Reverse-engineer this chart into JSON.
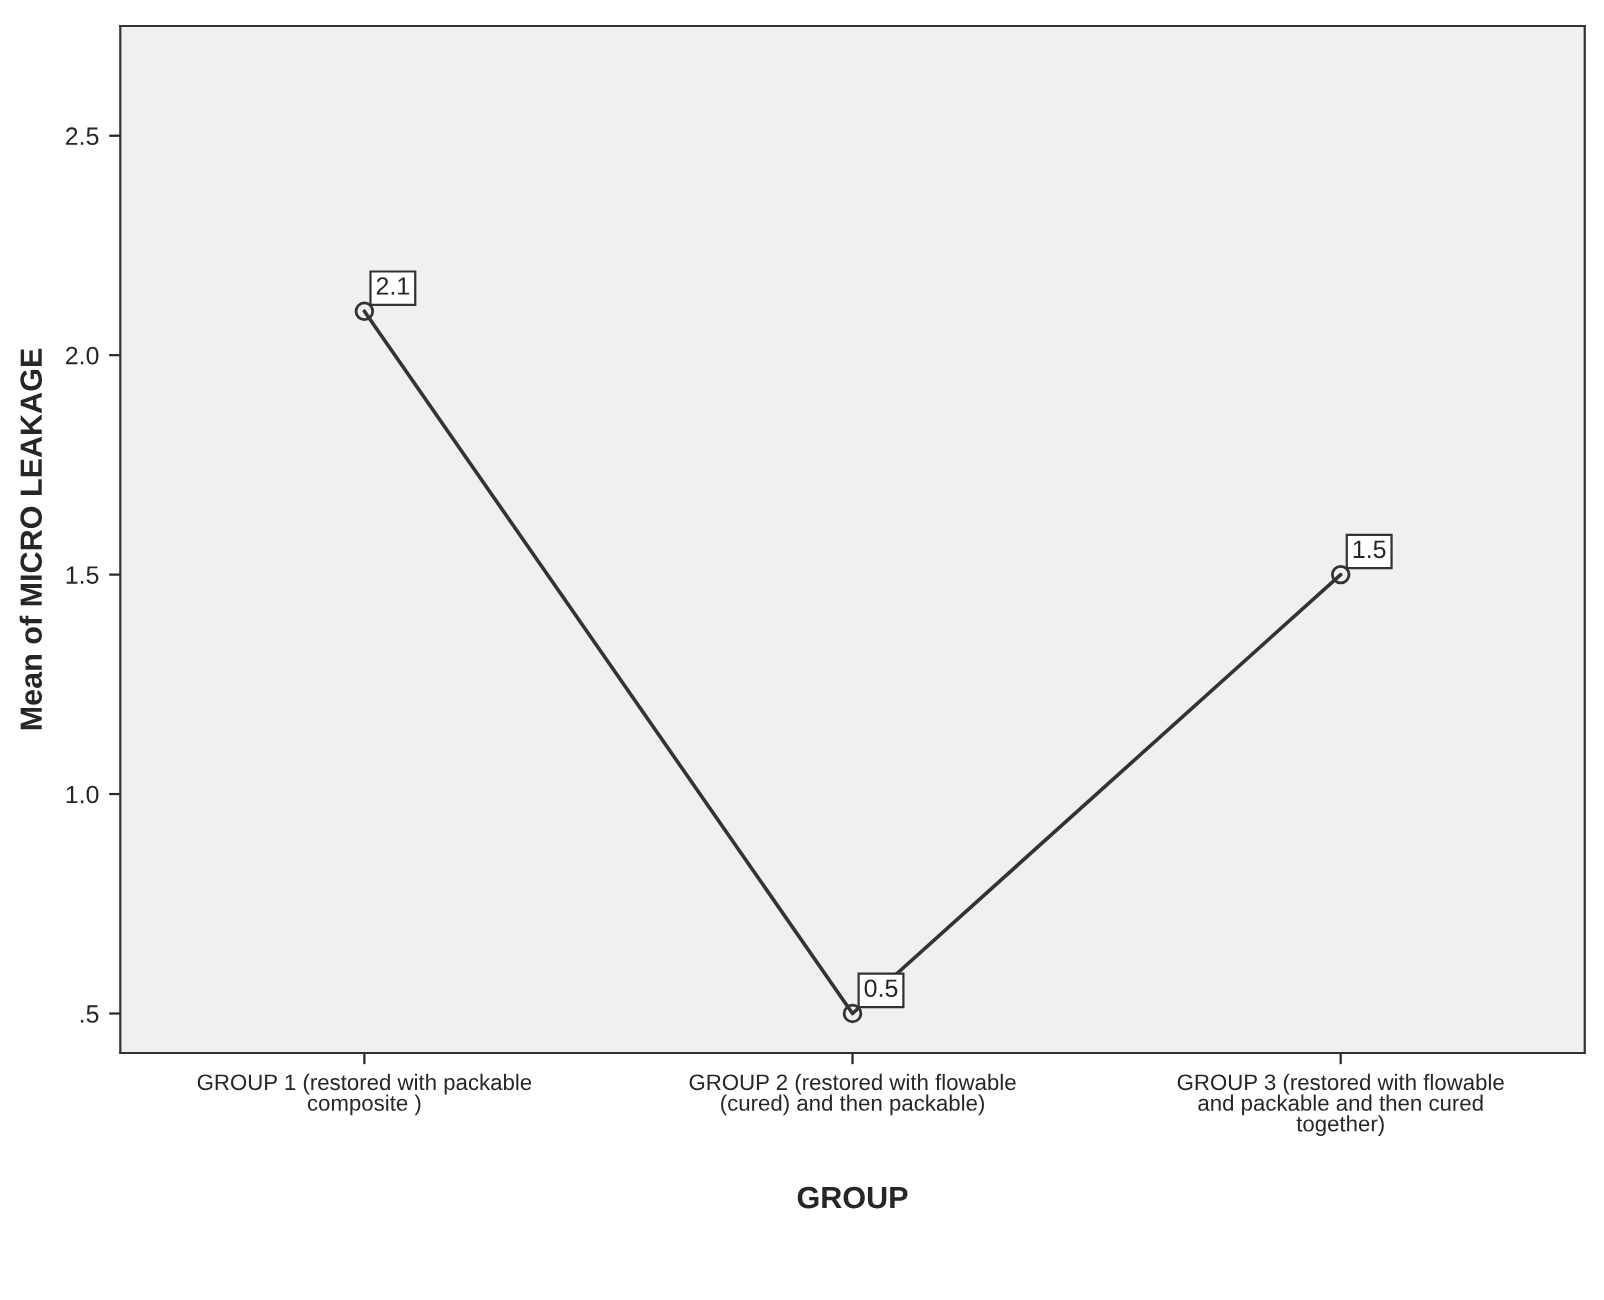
{
  "chart_data": {
    "type": "line",
    "xlabel": "GROUP",
    "ylabel": "Mean of MICRO LEAKAGE",
    "categories": [
      "GROUP 1 (restored with packable\ncomposite )",
      "GROUP 2 (restored with flowable\n(cured) and then packable)",
      "GROUP 3 (restored with flowable\nand packable and then cured\ntogether)"
    ],
    "values": [
      2.1,
      0.5,
      1.5
    ],
    "color": "#333333",
    "marker": "circle",
    "line_style": "solid",
    "data_labels": true,
    "ylim": [
      0.41,
      2.75
    ],
    "yticks": [
      {
        "value": 0.5,
        "label": ".5"
      },
      {
        "value": 1.0,
        "label": "1.0"
      },
      {
        "value": 1.5,
        "label": "1.5"
      },
      {
        "value": 2.0,
        "label": "2.0"
      },
      {
        "value": 2.5,
        "label": "2.5"
      }
    ],
    "grid": false,
    "legend": false
  }
}
